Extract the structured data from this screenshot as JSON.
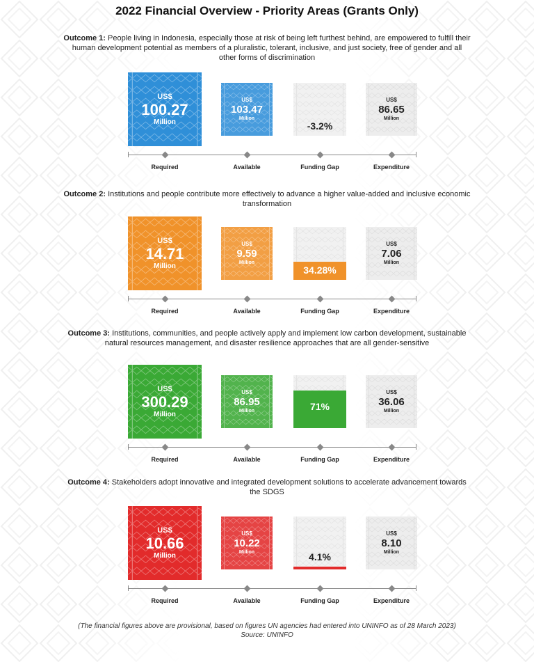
{
  "title": "2022 Financial Overview - Priority Areas (Grants Only)",
  "categories": [
    "Required",
    "Available",
    "Funding Gap",
    "Expenditure"
  ],
  "currency_label": "US$",
  "unit_label": "Million",
  "chart_data": [
    {
      "type": "bar",
      "outcome_label": "Outcome 1:",
      "outcome_text": "People living in Indonesia, especially those at risk of being left furthest behind, are empowered to fulfill their human development potential as members of a pluralistic, tolerant, inclusive, and just society, free of gender and all other forms of discrimination",
      "categories": [
        "Required",
        "Available",
        "Funding Gap",
        "Expenditure"
      ],
      "required": "100.27",
      "available": "103.47",
      "funding_gap": "-3.2%",
      "funding_gap_fraction": 0,
      "expenditure": "86.65",
      "color": "#2f8fd8"
    },
    {
      "type": "bar",
      "outcome_label": "Outcome 2:",
      "outcome_text": "Institutions and people contribute more effectively to advance a higher value-added and inclusive economic transformation",
      "categories": [
        "Required",
        "Available",
        "Funding Gap",
        "Expenditure"
      ],
      "required": "14.71",
      "available": "9.59",
      "funding_gap": "34.28%",
      "funding_gap_fraction": 0.3428,
      "expenditure": "7.06",
      "color": "#f0922a"
    },
    {
      "type": "bar",
      "outcome_label": "Outcome 3:",
      "outcome_text": "Institutions, communities, and people actively apply and implement low carbon development, sustainable natural resources management, and disaster resilience approaches that are all gender-sensitive",
      "categories": [
        "Required",
        "Available",
        "Funding Gap",
        "Expenditure"
      ],
      "required": "300.29",
      "available": "86.95",
      "funding_gap": "71%",
      "funding_gap_fraction": 0.71,
      "expenditure": "36.06",
      "color": "#3aa935"
    },
    {
      "type": "bar",
      "outcome_label": "Outcome 4:",
      "outcome_text": "Stakeholders adopt innovative and integrated development solutions to accelerate advancement towards the SDGS",
      "categories": [
        "Required",
        "Available",
        "Funding Gap",
        "Expenditure"
      ],
      "required": "10.66",
      "available": "10.22",
      "funding_gap": "4.1%",
      "funding_gap_fraction": 0.041,
      "expenditure": "8.10",
      "color": "#e22b2b"
    }
  ],
  "footer": {
    "note": "(The financial figures above are provisional, based on figures UN agencies had entered into UNINFO as of 28 March 2023)",
    "source": "Source: UNINFO"
  }
}
